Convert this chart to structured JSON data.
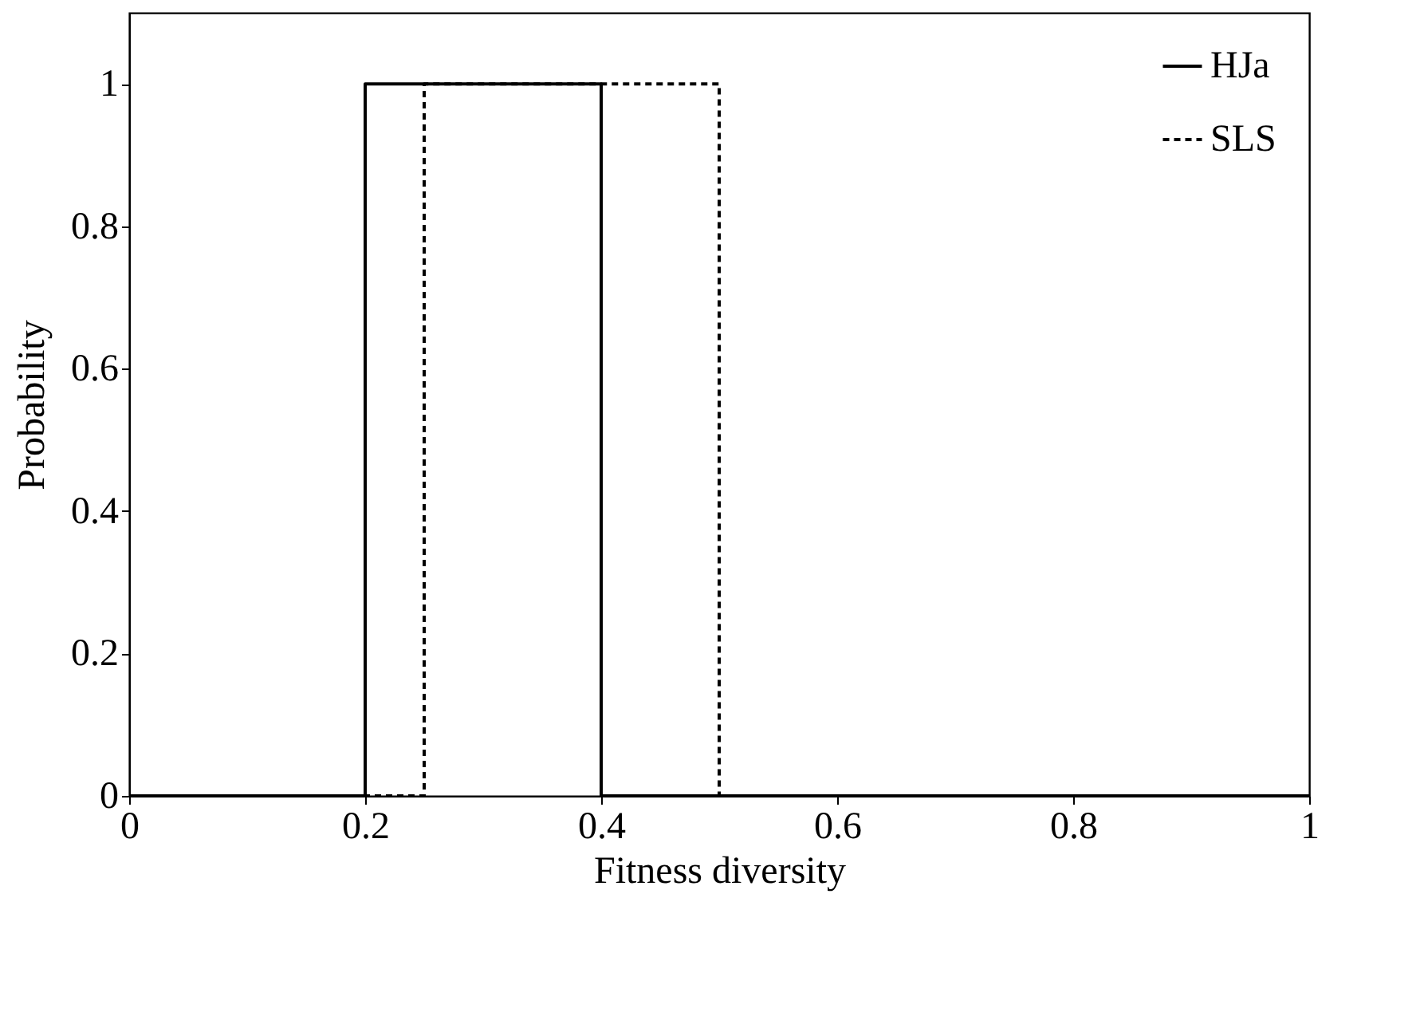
{
  "chart_data": {
    "type": "step",
    "xlabel": "Fitness diversity",
    "ylabel": "Probability",
    "x": [
      0,
      0.2,
      0.4,
      1
    ],
    "series": [
      {
        "name": "HJa",
        "color": "#000000",
        "line_style": "solid",
        "values": [
          0,
          1,
          0,
          0
        ]
      },
      {
        "name": "SLS",
        "color": "#000000",
        "line_style": "dashed",
        "x": [
          0,
          0.25,
          0.5,
          1
        ],
        "values": [
          0,
          1,
          0,
          0
        ]
      }
    ],
    "xlim": [
      0,
      1
    ],
    "ylim": [
      0,
      1.1
    ],
    "xticks": [
      0,
      0.2,
      0.4,
      0.6,
      0.8,
      1
    ],
    "yticks": [
      0,
      0.2,
      0.4,
      0.6,
      0.8,
      1
    ],
    "grid": false,
    "legend": "top right"
  }
}
